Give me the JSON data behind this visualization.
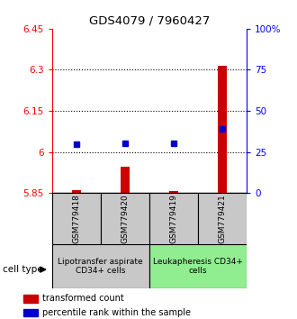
{
  "title": "GDS4079 / 7960427",
  "samples": [
    "GSM779418",
    "GSM779420",
    "GSM779419",
    "GSM779421"
  ],
  "red_values": [
    5.862,
    5.945,
    5.858,
    6.315
  ],
  "blue_values": [
    6.027,
    6.03,
    6.03,
    6.085
  ],
  "ylim_left": [
    5.85,
    6.45
  ],
  "ylim_right": [
    0,
    100
  ],
  "yticks_left": [
    5.85,
    6.0,
    6.15,
    6.3,
    6.45
  ],
  "yticks_right": [
    0,
    25,
    50,
    75,
    100
  ],
  "ytick_labels_left": [
    "5.85",
    "6",
    "6.15",
    "6.3",
    "6.45"
  ],
  "ytick_labels_right": [
    "0",
    "25",
    "50",
    "75",
    "100%"
  ],
  "gridlines": [
    6.0,
    6.15,
    6.3
  ],
  "bar_color": "#cc0000",
  "dot_color": "#0000cc",
  "group0_label": "Lipotransfer aspirate\nCD34+ cells",
  "group0_color": "#c8c8c8",
  "group0_samples": [
    0,
    1
  ],
  "group1_label": "Leukapheresis CD34+\ncells",
  "group1_color": "#90ee90",
  "group1_samples": [
    2,
    3
  ],
  "cell_type_label": "cell type",
  "legend_red": "transformed count",
  "legend_blue": "percentile rank within the sample",
  "bar_width": 0.18
}
